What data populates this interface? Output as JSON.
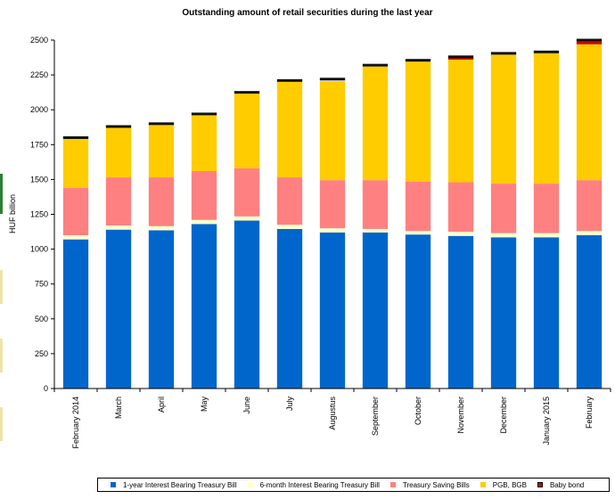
{
  "chart_data": {
    "type": "bar",
    "stacked": true,
    "title": "Outstanding amount of retail securities during the last year",
    "ylabel": "HUF billion",
    "xlabel": "",
    "ylim": [
      0,
      2500
    ],
    "yticks": [
      0,
      250,
      500,
      750,
      1000,
      1250,
      1500,
      1750,
      2000,
      2250,
      2500
    ],
    "grid": false,
    "legend_position": "bottom",
    "categories": [
      "February 2014",
      "March",
      "April",
      "May",
      "June",
      "July",
      "Augustus",
      "September",
      "October",
      "November",
      "December",
      "January 2015",
      "February"
    ],
    "series": [
      {
        "name": "1-year Interest Bearing Treasury Bill",
        "color": "#0066cc",
        "values": [
          1070,
          1140,
          1135,
          1180,
          1205,
          1145,
          1120,
          1120,
          1105,
          1095,
          1085,
          1085,
          1100
        ]
      },
      {
        "name": "6-month Interest Bearing Treasury Bill",
        "color": "#ffffcc",
        "values": [
          30,
          30,
          30,
          30,
          30,
          30,
          30,
          25,
          25,
          30,
          30,
          30,
          30
        ]
      },
      {
        "name": "Treasury Saving Bills",
        "color": "#ff8080",
        "values": [
          340,
          345,
          350,
          350,
          345,
          340,
          345,
          350,
          355,
          355,
          355,
          355,
          365
        ]
      },
      {
        "name": "PGB, BGB",
        "color": "#ffcc00",
        "values": [
          350,
          365,
          375,
          400,
          535,
          685,
          710,
          815,
          860,
          880,
          925,
          935,
          975
        ]
      },
      {
        "name": "Baby bond",
        "color": "#cc0000",
        "values": [
          0,
          0,
          0,
          0,
          0,
          0,
          0,
          0,
          0,
          15,
          0,
          0,
          20
        ]
      }
    ],
    "totals": [
      1800,
      1880,
      1900,
      1970,
      2125,
      2210,
      2220,
      2320,
      2355,
      2380,
      2405,
      2415,
      2500
    ]
  }
}
